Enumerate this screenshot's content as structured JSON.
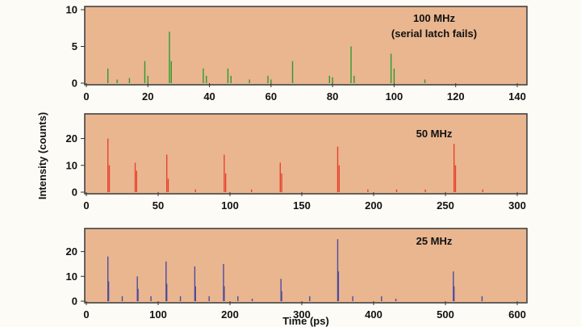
{
  "chart_data": [
    {
      "type": "bar",
      "annotation_line1": "100 MHz",
      "annotation_line2": "(serial latch fails)",
      "xlim": [
        0,
        140
      ],
      "ylim": [
        0,
        10
      ],
      "xticks": [
        0,
        20,
        40,
        60,
        80,
        100,
        120,
        140
      ],
      "yticks": [
        0,
        5,
        10
      ],
      "color": "#2e9a2e",
      "series": [
        {
          "name": "100 MHz",
          "x": [
            7,
            10,
            14,
            19,
            20,
            27,
            27.6,
            38,
            39,
            46,
            47,
            53,
            59,
            60,
            67,
            79,
            80,
            86,
            87,
            99,
            100,
            110
          ],
          "values": [
            2,
            0.5,
            0.7,
            3,
            1,
            7,
            3,
            2,
            1,
            2,
            1,
            0.5,
            1,
            0.5,
            3,
            1,
            0.8,
            5,
            1,
            4,
            2,
            0.5
          ]
        }
      ]
    },
    {
      "type": "bar",
      "annotation_line1": "50 MHz",
      "xlim": [
        0,
        300
      ],
      "ylim": [
        0,
        28
      ],
      "xticks": [
        0,
        50,
        100,
        150,
        200,
        250,
        300
      ],
      "yticks": [
        0,
        10,
        20
      ],
      "color": "#e8432c",
      "series": [
        {
          "name": "50 MHz",
          "x": [
            15,
            16,
            34,
            35,
            56,
            57,
            76,
            96,
            97,
            115,
            135,
            136,
            175,
            176,
            196,
            216,
            236,
            256,
            257,
            276
          ],
          "values": [
            20,
            10,
            11,
            8,
            14,
            5,
            1,
            14,
            7,
            1,
            11,
            7,
            17,
            10,
            1,
            1,
            1,
            18,
            10,
            1
          ]
        }
      ]
    },
    {
      "type": "bar",
      "annotation_line1": "25 MHz",
      "ylabel": "Intensity (counts)",
      "xlabel": "Time (ps)",
      "xlim": [
        0,
        600
      ],
      "ylim": [
        0,
        28
      ],
      "xticks": [
        0,
        100,
        200,
        300,
        400,
        500,
        600
      ],
      "yticks": [
        0,
        10,
        20
      ],
      "color": "#4c4c9c",
      "series": [
        {
          "name": "25 MHz",
          "x": [
            30,
            31,
            50,
            71,
            72,
            90,
            111,
            112,
            131,
            151,
            152,
            171,
            191,
            192,
            211,
            231,
            271,
            272,
            311,
            350,
            351,
            371,
            411,
            431,
            511,
            512,
            551
          ],
          "values": [
            18,
            8,
            2,
            10,
            5,
            2,
            16,
            7,
            2,
            14,
            6,
            2,
            15,
            6,
            2,
            1,
            9,
            4,
            2,
            25,
            12,
            2,
            2,
            1,
            12,
            6,
            2
          ]
        }
      ]
    }
  ]
}
